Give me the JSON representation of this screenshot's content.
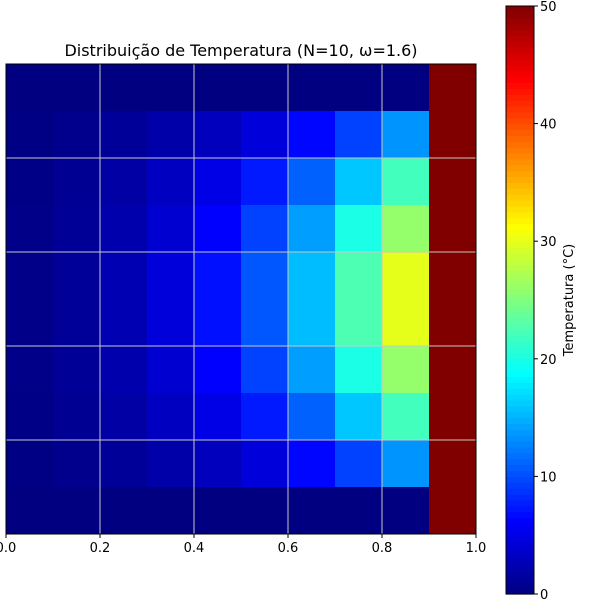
{
  "chart_data": {
    "type": "heatmap",
    "title": "Distribuição de Temperatura (N=10, ω=1.6)",
    "xlabel": "",
    "ylabel": "",
    "xlim": [
      0.0,
      1.0
    ],
    "ylim": [
      0.0,
      1.0
    ],
    "x_ticks": [
      "0.0",
      "0.2",
      "0.4",
      "0.6",
      "0.8",
      "1.0"
    ],
    "y_ticks": [],
    "grid": true,
    "colormap": "jet",
    "colorbar": {
      "label": "Temperatura (°C)",
      "range": [
        0,
        50
      ],
      "ticks": [
        "0",
        "10",
        "20",
        "30",
        "40",
        "50"
      ]
    },
    "rows": 10,
    "cols": 10,
    "values": [
      [
        0.0,
        0.0,
        0.0,
        0.0,
        0.0,
        0.0,
        0.0,
        0.0,
        0.0,
        50.0
      ],
      [
        0.2,
        0.6,
        1.2,
        2.0,
        3.0,
        4.5,
        6.5,
        9.5,
        13.5,
        50.0
      ],
      [
        0.3,
        0.9,
        1.8,
        3.2,
        5.0,
        7.5,
        11.0,
        16.0,
        22.0,
        50.0
      ],
      [
        0.4,
        1.1,
        2.2,
        4.0,
        6.2,
        9.5,
        14.0,
        20.0,
        26.0,
        50.0
      ],
      [
        0.4,
        1.2,
        2.5,
        4.5,
        7.0,
        10.5,
        15.5,
        22.5,
        30.0,
        50.0
      ],
      [
        0.4,
        1.2,
        2.5,
        4.5,
        7.0,
        10.5,
        15.5,
        22.5,
        30.0,
        50.0
      ],
      [
        0.4,
        1.1,
        2.2,
        4.0,
        6.2,
        9.5,
        14.0,
        20.0,
        26.0,
        50.0
      ],
      [
        0.3,
        0.9,
        1.8,
        3.2,
        5.0,
        7.5,
        11.0,
        16.0,
        22.0,
        50.0
      ],
      [
        0.2,
        0.6,
        1.2,
        2.0,
        3.0,
        4.5,
        6.5,
        9.5,
        13.5,
        50.0
      ],
      [
        0.0,
        0.0,
        0.0,
        0.0,
        0.0,
        0.0,
        0.0,
        0.0,
        0.0,
        50.0
      ]
    ]
  }
}
